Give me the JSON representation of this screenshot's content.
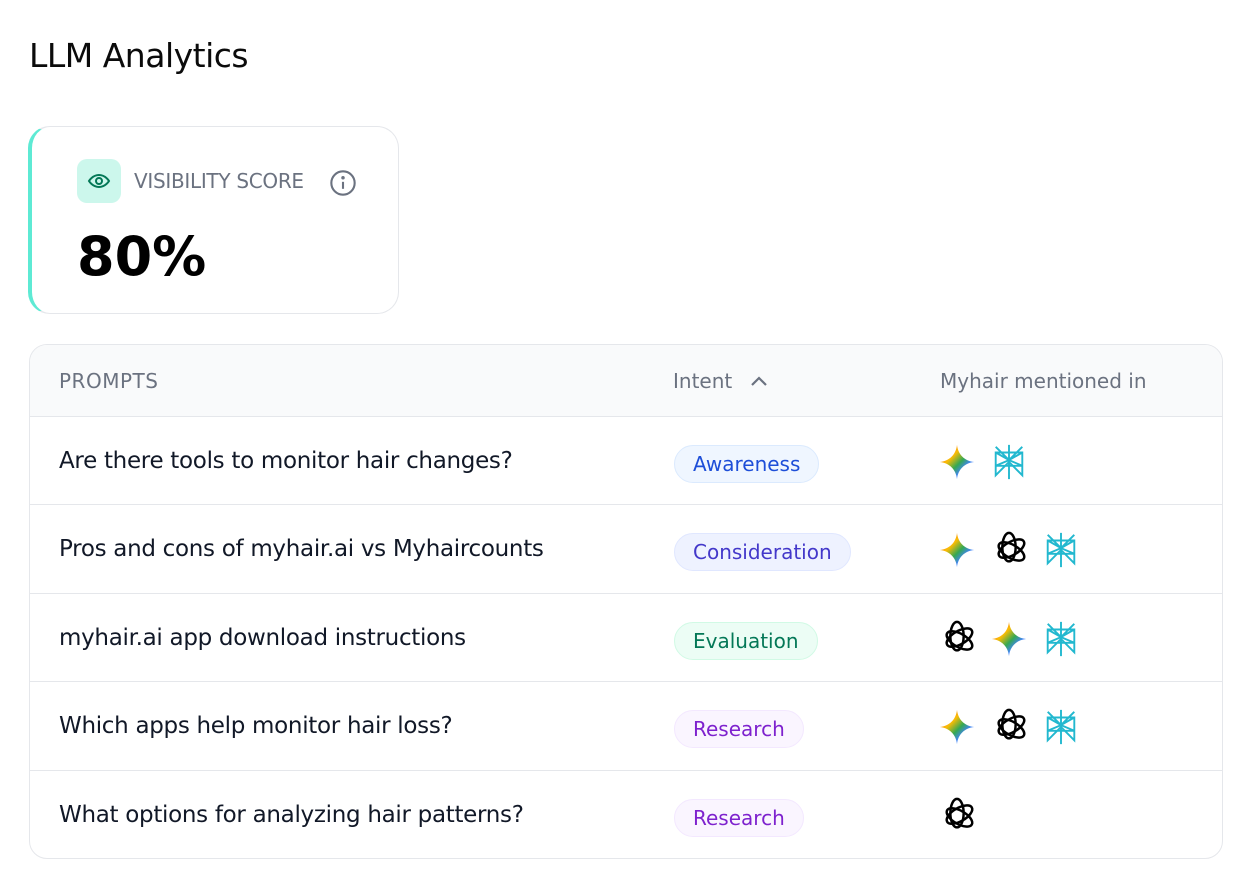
{
  "title": "LLM Analytics",
  "visibility": {
    "label": "VISIBILITY SCORE",
    "value": "80%",
    "icon": "eye-icon"
  },
  "table": {
    "headers": {
      "prompts": "PROMPTS",
      "intent": "Intent",
      "mentioned": "Myhair mentioned in"
    },
    "sort": "intent-ascending",
    "rows": [
      {
        "prompt": "Are there tools to monitor hair changes?",
        "intent": "Awareness",
        "llms": [
          "gemini",
          "perplexity"
        ]
      },
      {
        "prompt": "Pros and cons of myhair.ai vs Myhaircounts",
        "intent": "Consideration",
        "llms": [
          "gemini",
          "chatgpt",
          "perplexity"
        ]
      },
      {
        "prompt": "myhair.ai app download instructions",
        "intent": "Evaluation",
        "llms": [
          "chatgpt",
          "gemini",
          "perplexity"
        ]
      },
      {
        "prompt": "Which apps help monitor hair loss?",
        "intent": "Research",
        "llms": [
          "gemini",
          "chatgpt",
          "perplexity"
        ]
      },
      {
        "prompt": "What options for analyzing hair patterns?",
        "intent": "Research",
        "llms": [
          "chatgpt"
        ]
      }
    ]
  },
  "intent_colors": {
    "Awareness": {
      "text": "#1d4ed8",
      "bg": "#eff6ff",
      "border": "#dbeafe"
    },
    "Consideration": {
      "text": "#4338ca",
      "bg": "#eef2ff",
      "border": "#e0e7ff"
    },
    "Evaluation": {
      "text": "#047857",
      "bg": "#ecfdf5",
      "border": "#d1fae5"
    },
    "Research": {
      "text": "#7e22ce",
      "bg": "#faf5ff",
      "border": "#f3e8ff"
    }
  }
}
